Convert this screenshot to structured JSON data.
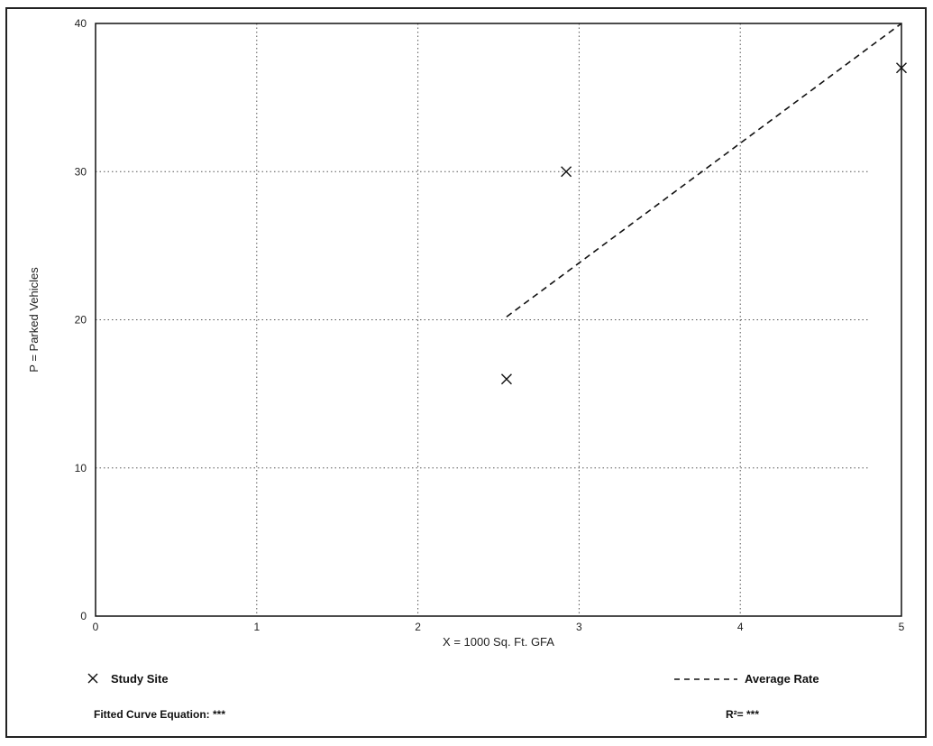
{
  "chart_data": {
    "type": "scatter",
    "xlabel": "X = 1000 Sq. Ft. GFA",
    "ylabel": "P = Parked Vehicles",
    "xlim": [
      0,
      5
    ],
    "ylim": [
      0,
      40
    ],
    "x_ticks": [
      "0",
      "1",
      "2",
      "3",
      "4",
      "5"
    ],
    "y_ticks": [
      "0",
      "10",
      "20",
      "30",
      "40"
    ],
    "grid": true,
    "series": [
      {
        "name": "Study Site",
        "marker": "x",
        "points": [
          {
            "x": 2.55,
            "y": 16
          },
          {
            "x": 2.92,
            "y": 30
          },
          {
            "x": 5.0,
            "y": 37
          }
        ]
      },
      {
        "name": "Average Rate",
        "style": "dashed",
        "points": [
          {
            "x": 2.55,
            "y": 20.2
          },
          {
            "x": 5.0,
            "y": 40
          }
        ]
      }
    ],
    "legend": {
      "study_site": "Study Site",
      "average_rate": "Average Rate"
    },
    "fitted_curve_label": "Fitted Curve Equation: ***",
    "r_squared_label": "R²= ***"
  }
}
